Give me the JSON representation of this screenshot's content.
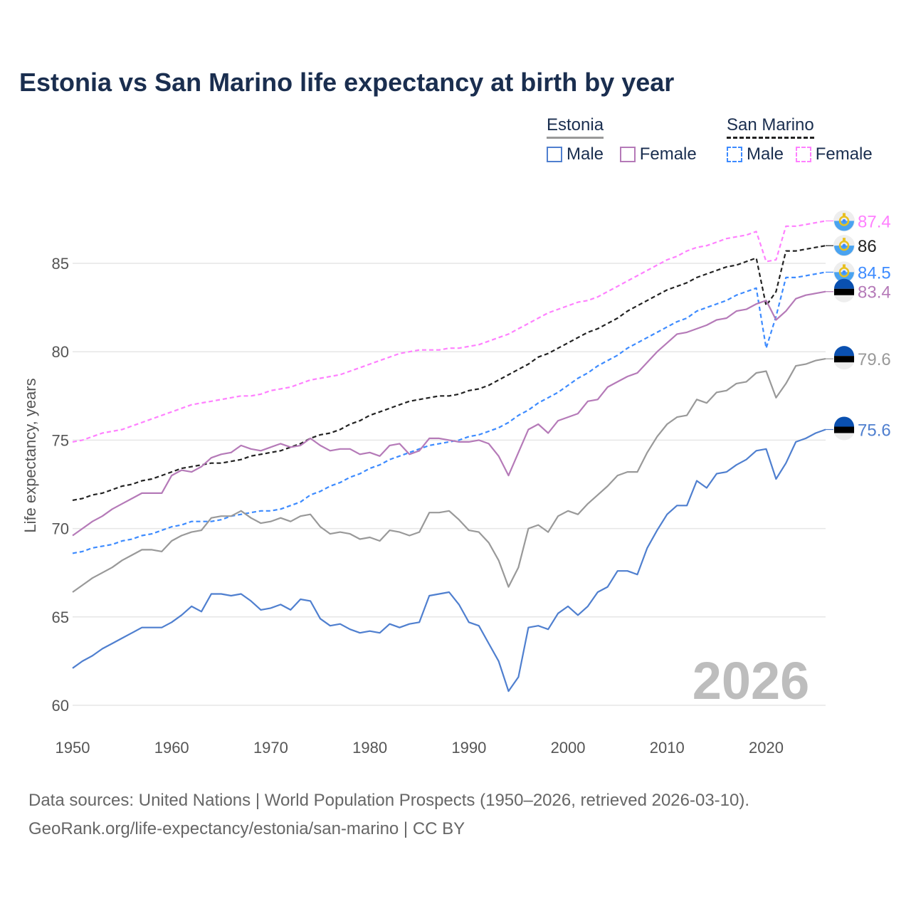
{
  "title": "Estonia vs San Marino life expectancy at birth by year",
  "legend": {
    "groups": [
      {
        "name": "Estonia",
        "items": [
          "Male",
          "Female"
        ]
      },
      {
        "name": "San Marino",
        "items": [
          "Male",
          "Female"
        ]
      }
    ]
  },
  "watermark_year": "2026",
  "footer": {
    "line1": "Data sources: United Nations | World Population Prospects (1950–2026, retrieved 2026-03-10).",
    "line2": "GeoRank.org/life-expectancy/estonia/san-marino | CC BY"
  },
  "chart_data": {
    "type": "line",
    "title": "Estonia vs San Marino life expectancy at birth by year",
    "xlabel": "",
    "ylabel": "Life expectancy, years",
    "xlim": [
      1950,
      2026
    ],
    "ylim": [
      59,
      89
    ],
    "xticks": [
      1950,
      1960,
      1970,
      1980,
      1990,
      2000,
      2010,
      2020
    ],
    "yticks": [
      60,
      65,
      70,
      75,
      80,
      85
    ],
    "grid": true,
    "legend_position": "top-right",
    "x_start": 1950,
    "series": [
      {
        "name": "San Marino Female",
        "country": "San Marino",
        "color": "#ff80ff",
        "dashed": true,
        "flag": "san-marino",
        "end_label": "87.4",
        "values": [
          74.9,
          75.0,
          75.2,
          75.4,
          75.5,
          75.6,
          75.8,
          76.0,
          76.2,
          76.4,
          76.6,
          76.8,
          77.0,
          77.1,
          77.2,
          77.3,
          77.4,
          77.5,
          77.5,
          77.6,
          77.8,
          77.9,
          78.0,
          78.2,
          78.4,
          78.5,
          78.6,
          78.7,
          78.9,
          79.1,
          79.3,
          79.5,
          79.7,
          79.9,
          80.0,
          80.1,
          80.1,
          80.1,
          80.2,
          80.2,
          80.3,
          80.4,
          80.6,
          80.8,
          81.0,
          81.3,
          81.6,
          81.9,
          82.2,
          82.4,
          82.6,
          82.8,
          82.9,
          83.1,
          83.4,
          83.7,
          84.0,
          84.3,
          84.6,
          84.9,
          85.2,
          85.4,
          85.7,
          85.9,
          86.0,
          86.2,
          86.4,
          86.5,
          86.6,
          86.8,
          85.1,
          85.2,
          87.1,
          87.1,
          87.2,
          87.3,
          87.4
        ]
      },
      {
        "name": "San Marino Total",
        "country": "San Marino",
        "color": "#222222",
        "dashed": true,
        "flag": "san-marino",
        "end_label": "86",
        "values": [
          71.6,
          71.7,
          71.9,
          72.0,
          72.2,
          72.4,
          72.5,
          72.7,
          72.8,
          73.0,
          73.2,
          73.4,
          73.5,
          73.6,
          73.7,
          73.7,
          73.8,
          73.9,
          74.1,
          74.2,
          74.3,
          74.4,
          74.6,
          74.8,
          75.1,
          75.3,
          75.4,
          75.6,
          75.9,
          76.1,
          76.4,
          76.6,
          76.8,
          77.0,
          77.2,
          77.3,
          77.4,
          77.5,
          77.5,
          77.6,
          77.8,
          77.9,
          78.1,
          78.4,
          78.7,
          79.0,
          79.3,
          79.7,
          79.9,
          80.2,
          80.5,
          80.8,
          81.1,
          81.3,
          81.6,
          81.9,
          82.3,
          82.6,
          82.9,
          83.2,
          83.5,
          83.7,
          83.9,
          84.2,
          84.4,
          84.6,
          84.8,
          84.9,
          85.1,
          85.3,
          82.6,
          83.4,
          85.7,
          85.7,
          85.8,
          85.9,
          86.0
        ]
      },
      {
        "name": "San Marino Male",
        "country": "San Marino",
        "color": "#3d8bff",
        "dashed": true,
        "flag": "san-marino",
        "end_label": "84.5",
        "values": [
          68.6,
          68.7,
          68.9,
          69.0,
          69.1,
          69.3,
          69.4,
          69.6,
          69.7,
          69.9,
          70.1,
          70.2,
          70.4,
          70.4,
          70.4,
          70.5,
          70.7,
          70.8,
          70.9,
          71.0,
          71.0,
          71.1,
          71.3,
          71.5,
          71.9,
          72.1,
          72.4,
          72.6,
          72.9,
          73.1,
          73.4,
          73.6,
          73.9,
          74.1,
          74.3,
          74.5,
          74.7,
          74.8,
          74.9,
          75.0,
          75.2,
          75.3,
          75.5,
          75.7,
          76.0,
          76.4,
          76.7,
          77.1,
          77.4,
          77.7,
          78.1,
          78.5,
          78.8,
          79.2,
          79.5,
          79.8,
          80.2,
          80.5,
          80.8,
          81.1,
          81.4,
          81.7,
          81.9,
          82.3,
          82.5,
          82.7,
          82.9,
          83.2,
          83.4,
          83.6,
          80.2,
          82.0,
          84.2,
          84.2,
          84.3,
          84.4,
          84.5
        ]
      },
      {
        "name": "Estonia Female",
        "country": "Estonia",
        "color": "#b57ab8",
        "dashed": false,
        "flag": "estonia",
        "end_label": "83.4",
        "values": [
          69.6,
          70.0,
          70.4,
          70.7,
          71.1,
          71.4,
          71.7,
          72.0,
          72.0,
          72.0,
          73.0,
          73.3,
          73.2,
          73.5,
          74.0,
          74.2,
          74.3,
          74.7,
          74.5,
          74.4,
          74.6,
          74.8,
          74.6,
          74.7,
          75.1,
          74.7,
          74.4,
          74.5,
          74.5,
          74.2,
          74.3,
          74.1,
          74.7,
          74.8,
          74.2,
          74.4,
          75.1,
          75.1,
          75.0,
          74.9,
          74.9,
          75.0,
          74.8,
          74.1,
          73.0,
          74.3,
          75.6,
          75.9,
          75.4,
          76.1,
          76.3,
          76.5,
          77.2,
          77.3,
          78.0,
          78.3,
          78.6,
          78.8,
          79.4,
          80.0,
          80.5,
          81.0,
          81.1,
          81.3,
          81.5,
          81.8,
          81.9,
          82.3,
          82.4,
          82.7,
          82.9,
          81.8,
          82.3,
          83.0,
          83.2,
          83.3,
          83.4
        ]
      },
      {
        "name": "Estonia Total",
        "country": "Estonia",
        "color": "#999999",
        "dashed": false,
        "flag": "estonia",
        "end_label": "79.6",
        "values": [
          66.4,
          66.8,
          67.2,
          67.5,
          67.8,
          68.2,
          68.5,
          68.8,
          68.8,
          68.7,
          69.3,
          69.6,
          69.8,
          69.9,
          70.6,
          70.7,
          70.7,
          71.0,
          70.6,
          70.3,
          70.4,
          70.6,
          70.4,
          70.7,
          70.8,
          70.1,
          69.7,
          69.8,
          69.7,
          69.4,
          69.5,
          69.3,
          69.9,
          69.8,
          69.6,
          69.8,
          70.9,
          70.9,
          71.0,
          70.5,
          69.9,
          69.8,
          69.2,
          68.2,
          66.7,
          67.8,
          70.0,
          70.2,
          69.8,
          70.7,
          71.0,
          70.8,
          71.4,
          71.9,
          72.4,
          73.0,
          73.2,
          73.2,
          74.3,
          75.2,
          75.9,
          76.3,
          76.4,
          77.3,
          77.1,
          77.7,
          77.8,
          78.2,
          78.3,
          78.8,
          78.9,
          77.4,
          78.2,
          79.2,
          79.3,
          79.5,
          79.6
        ]
      },
      {
        "name": "Estonia Male",
        "country": "Estonia",
        "color": "#4f7fcf",
        "dashed": false,
        "flag": "estonia",
        "end_label": "75.6",
        "values": [
          62.1,
          62.5,
          62.8,
          63.2,
          63.5,
          63.8,
          64.1,
          64.4,
          64.4,
          64.4,
          64.7,
          65.1,
          65.6,
          65.3,
          66.3,
          66.3,
          66.2,
          66.3,
          65.9,
          65.4,
          65.5,
          65.7,
          65.4,
          66.0,
          65.9,
          64.9,
          64.5,
          64.6,
          64.3,
          64.1,
          64.2,
          64.1,
          64.6,
          64.4,
          64.6,
          64.7,
          66.2,
          66.3,
          66.4,
          65.7,
          64.7,
          64.5,
          63.5,
          62.5,
          60.8,
          61.6,
          64.4,
          64.5,
          64.3,
          65.2,
          65.6,
          65.1,
          65.6,
          66.4,
          66.7,
          67.6,
          67.6,
          67.4,
          68.9,
          69.9,
          70.8,
          71.3,
          71.3,
          72.7,
          72.3,
          73.1,
          73.2,
          73.6,
          73.9,
          74.4,
          74.5,
          72.8,
          73.7,
          74.9,
          75.1,
          75.4,
          75.6
        ]
      }
    ]
  }
}
